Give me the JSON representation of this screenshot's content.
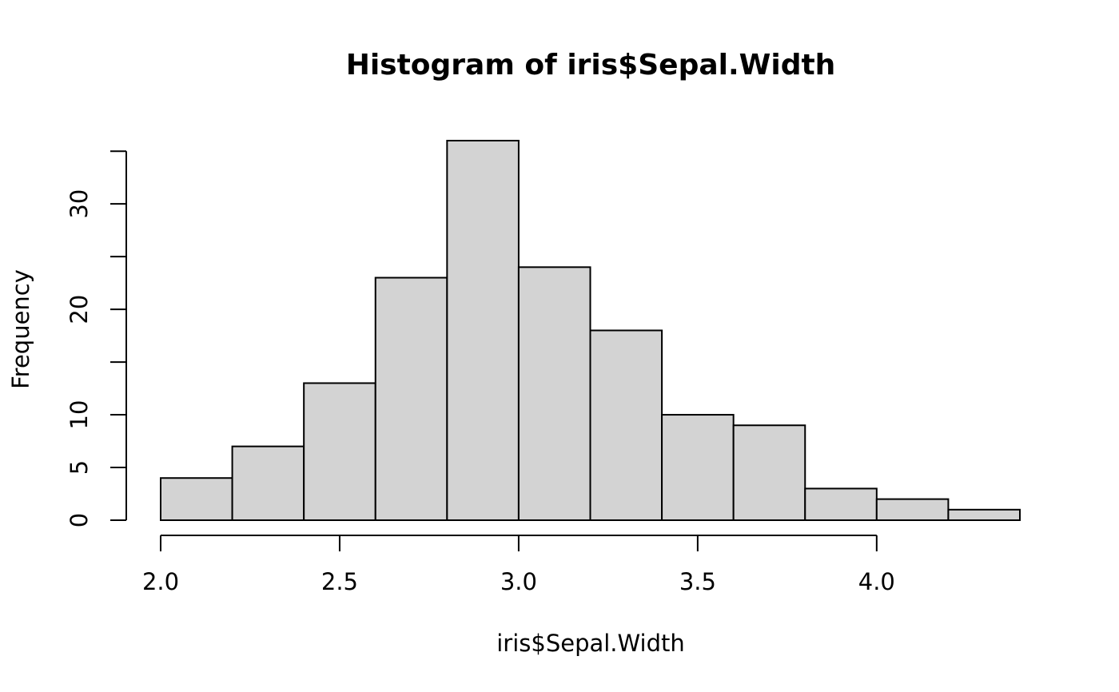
{
  "chart_data": {
    "type": "bar",
    "title": "Histogram of iris$Sepal.Width",
    "xlabel": "iris$Sepal.Width",
    "ylabel": "Frequency",
    "bin_edges": [
      2.0,
      2.2,
      2.4,
      2.6,
      2.8,
      3.0,
      3.2,
      3.4,
      3.6,
      3.8,
      4.0,
      4.2,
      4.4
    ],
    "values": [
      4,
      7,
      13,
      23,
      36,
      24,
      18,
      10,
      9,
      3,
      2,
      1
    ],
    "xlim": [
      2.0,
      4.4
    ],
    "ylim": [
      0,
      36
    ],
    "x_ticks": [
      2.0,
      2.5,
      3.0,
      3.5,
      4.0
    ],
    "x_tick_labels": [
      "2.0",
      "2.5",
      "3.0",
      "3.5",
      "4.0"
    ],
    "y_ticks": [
      0,
      5,
      10,
      15,
      20,
      25,
      30,
      35
    ],
    "y_tick_labels": [
      "0",
      "5",
      "10",
      "",
      "20",
      "",
      "30",
      ""
    ],
    "bar_color": "#d3d3d3",
    "grid": false,
    "legend": "none"
  }
}
